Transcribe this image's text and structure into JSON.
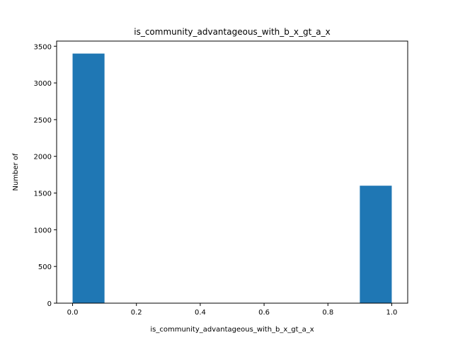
{
  "chart_data": {
    "type": "bar",
    "title": "is_community_advantageous_with_b_x_gt_a_x",
    "xlabel": "is_community_advantageous_with_b_x_gt_a_x",
    "ylabel": "Number of",
    "xlim": [
      -0.05,
      1.05
    ],
    "ylim": [
      0,
      3570
    ],
    "x_ticks": [
      0.0,
      0.2,
      0.4,
      0.6,
      0.8,
      1.0
    ],
    "x_tick_labels": [
      "0.0",
      "0.2",
      "0.4",
      "0.6",
      "0.8",
      "1.0"
    ],
    "y_ticks": [
      0,
      500,
      1000,
      1500,
      2000,
      2500,
      3000,
      3500
    ],
    "y_tick_labels": [
      "0",
      "500",
      "1000",
      "1500",
      "2000",
      "2500",
      "3000",
      "3500"
    ],
    "bins": [
      {
        "start": 0.0,
        "end": 0.1,
        "value": 3400
      },
      {
        "start": 0.1,
        "end": 0.2,
        "value": 0
      },
      {
        "start": 0.2,
        "end": 0.3,
        "value": 0
      },
      {
        "start": 0.3,
        "end": 0.4,
        "value": 0
      },
      {
        "start": 0.4,
        "end": 0.5,
        "value": 0
      },
      {
        "start": 0.5,
        "end": 0.6,
        "value": 0
      },
      {
        "start": 0.6,
        "end": 0.7,
        "value": 0
      },
      {
        "start": 0.7,
        "end": 0.8,
        "value": 0
      },
      {
        "start": 0.8,
        "end": 0.9,
        "value": 0
      },
      {
        "start": 0.9,
        "end": 1.0,
        "value": 1600
      }
    ],
    "bar_color": "#1f77b4",
    "grid": false,
    "legend": "none"
  }
}
